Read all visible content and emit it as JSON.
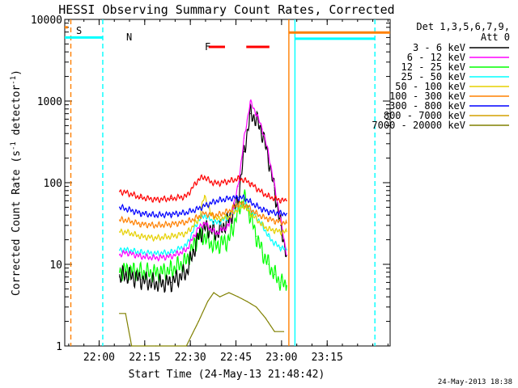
{
  "chart_data": {
    "type": "line",
    "title": "HESSI Observing Summary Count Rates, Corrected",
    "xlabel": "Start Time (24-May-13 21:48:42)",
    "ylabel": "Corrected Count Rate (s⁻¹ detector⁻¹)",
    "ylabel_main": "Corrected Count Rate (s",
    "ylabel_sup1": "-1",
    "ylabel_mid": " detector",
    "ylabel_sup2": "-1",
    "ylabel_end": ")",
    "yscale": "log",
    "ylim": [
      1,
      10000
    ],
    "xlim_minutes": [
      0,
      107
    ],
    "x_unit": "minutes after 21:48:42",
    "xticks": [
      {
        "label": "22:00",
        "value": 11.3
      },
      {
        "label": "22:15",
        "value": 26.3
      },
      {
        "label": "22:30",
        "value": 41.3
      },
      {
        "label": "22:45",
        "value": 56.3
      },
      {
        "label": "23:00",
        "value": 71.3
      },
      {
        "label": "23:15",
        "value": 86.3
      }
    ],
    "yticks": [
      {
        "label": "1",
        "value": 1
      },
      {
        "label": "10",
        "value": 10
      },
      {
        "label": "100",
        "value": 100
      },
      {
        "label": "1000",
        "value": 1000
      },
      {
        "label": "10000",
        "value": 10000
      }
    ],
    "legend_header": [
      "Det 1,3,5,6,7,9,",
      "Att 0"
    ],
    "legend_position": "right",
    "series": [
      {
        "name": "3 - 6 keV",
        "color": "#000000",
        "points": [
          [
            18,
            7
          ],
          [
            20,
            7.5
          ],
          [
            25,
            6.5
          ],
          [
            30,
            5.8
          ],
          [
            35,
            6
          ],
          [
            40,
            8
          ],
          [
            44,
            22
          ],
          [
            46,
            28
          ],
          [
            48,
            27
          ],
          [
            50,
            24
          ],
          [
            54,
            35
          ],
          [
            57,
            60
          ],
          [
            59,
            240
          ],
          [
            61,
            700
          ],
          [
            63,
            600
          ],
          [
            65,
            400
          ],
          [
            67,
            200
          ],
          [
            69,
            80
          ],
          [
            71,
            30
          ],
          [
            73,
            13
          ]
        ]
      },
      {
        "name": "6 - 12 keV",
        "color": "#ff00ff",
        "points": [
          [
            18,
            13
          ],
          [
            20,
            14
          ],
          [
            25,
            12.5
          ],
          [
            30,
            12
          ],
          [
            35,
            12.5
          ],
          [
            40,
            15
          ],
          [
            44,
            28
          ],
          [
            46,
            32
          ],
          [
            48,
            27
          ],
          [
            50,
            24
          ],
          [
            54,
            30
          ],
          [
            57,
            90
          ],
          [
            59,
            350
          ],
          [
            61,
            980
          ],
          [
            63,
            700
          ],
          [
            65,
            450
          ],
          [
            67,
            230
          ],
          [
            69,
            90
          ],
          [
            71,
            35
          ],
          [
            73,
            13
          ]
        ]
      },
      {
        "name": "12 - 25 keV",
        "color": "#00ff00",
        "points": [
          [
            18,
            8
          ],
          [
            20,
            8.5
          ],
          [
            25,
            8
          ],
          [
            30,
            7.8
          ],
          [
            35,
            8.5
          ],
          [
            40,
            11
          ],
          [
            44,
            22
          ],
          [
            46,
            22
          ],
          [
            48,
            18
          ],
          [
            50,
            17
          ],
          [
            54,
            20
          ],
          [
            57,
            45
          ],
          [
            59,
            65
          ],
          [
            61,
            40
          ],
          [
            63,
            22
          ],
          [
            65,
            14
          ],
          [
            67,
            10
          ],
          [
            69,
            7.5
          ],
          [
            71,
            6
          ],
          [
            73,
            5.5
          ]
        ]
      },
      {
        "name": "25 - 50 keV",
        "color": "#00ffff",
        "points": [
          [
            18,
            15
          ],
          [
            20,
            15
          ],
          [
            25,
            14
          ],
          [
            30,
            13.5
          ],
          [
            35,
            14
          ],
          [
            40,
            17
          ],
          [
            44,
            35
          ],
          [
            46,
            40
          ],
          [
            48,
            35
          ],
          [
            50,
            32
          ],
          [
            54,
            38
          ],
          [
            57,
            50
          ],
          [
            59,
            55
          ],
          [
            61,
            45
          ],
          [
            63,
            38
          ],
          [
            65,
            30
          ],
          [
            67,
            22
          ],
          [
            69,
            18
          ],
          [
            71,
            16
          ],
          [
            73,
            15
          ]
        ]
      },
      {
        "name": "50 - 100 keV",
        "color": "#e6d000",
        "points": [
          [
            18,
            25
          ],
          [
            20,
            25
          ],
          [
            25,
            22
          ],
          [
            30,
            21
          ],
          [
            35,
            22
          ],
          [
            40,
            24
          ],
          [
            44,
            35
          ],
          [
            46,
            70
          ],
          [
            48,
            42
          ],
          [
            50,
            36
          ],
          [
            54,
            38
          ],
          [
            57,
            48
          ],
          [
            59,
            52
          ],
          [
            61,
            42
          ],
          [
            63,
            36
          ],
          [
            65,
            30
          ],
          [
            67,
            27
          ],
          [
            69,
            26
          ],
          [
            71,
            25
          ],
          [
            73,
            25
          ]
        ]
      },
      {
        "name": "100 - 300 keV",
        "color": "#ff8000",
        "points": [
          [
            18,
            35
          ],
          [
            20,
            35
          ],
          [
            25,
            31
          ],
          [
            30,
            30
          ],
          [
            35,
            31
          ],
          [
            40,
            33
          ],
          [
            44,
            38
          ],
          [
            46,
            42
          ],
          [
            48,
            40
          ],
          [
            50,
            40
          ],
          [
            54,
            45
          ],
          [
            57,
            55
          ],
          [
            59,
            55
          ],
          [
            61,
            48
          ],
          [
            63,
            42
          ],
          [
            65,
            38
          ],
          [
            67,
            36
          ],
          [
            69,
            34
          ],
          [
            71,
            33
          ],
          [
            73,
            32
          ]
        ]
      },
      {
        "name": "300 - 800 keV",
        "color": "#0000ff",
        "points": [
          [
            18,
            50
          ],
          [
            20,
            48
          ],
          [
            25,
            42
          ],
          [
            30,
            40
          ],
          [
            35,
            41
          ],
          [
            40,
            43
          ],
          [
            44,
            48
          ],
          [
            46,
            52
          ],
          [
            48,
            56
          ],
          [
            50,
            60
          ],
          [
            54,
            64
          ],
          [
            57,
            66
          ],
          [
            59,
            65
          ],
          [
            61,
            58
          ],
          [
            63,
            52
          ],
          [
            65,
            47
          ],
          [
            67,
            44
          ],
          [
            69,
            43
          ],
          [
            71,
            42
          ],
          [
            73,
            42
          ]
        ]
      },
      {
        "name": "800 - 7000 keV",
        "color": "#d4a000",
        "points": []
      },
      {
        "name": "7000 - 20000 keV",
        "color": "#808000",
        "points": [
          [
            18,
            2.5
          ],
          [
            20,
            2.5
          ],
          [
            22,
            1
          ],
          [
            30,
            1
          ],
          [
            40,
            1
          ],
          [
            44,
            2
          ],
          [
            47,
            3.5
          ],
          [
            49,
            4.5
          ],
          [
            51,
            4
          ],
          [
            54,
            4.5
          ],
          [
            57,
            4
          ],
          [
            60,
            3.5
          ],
          [
            63,
            3
          ],
          [
            66,
            2.2
          ],
          [
            69,
            1.5
          ],
          [
            72,
            1.5
          ]
        ]
      },
      {
        "name": "",
        "color": "#ff0000",
        "points": [
          [
            18,
            78
          ],
          [
            20,
            76
          ],
          [
            25,
            66
          ],
          [
            30,
            62
          ],
          [
            35,
            64
          ],
          [
            40,
            68
          ],
          [
            44,
            110
          ],
          [
            46,
            118
          ],
          [
            48,
            102
          ],
          [
            50,
            98
          ],
          [
            54,
            104
          ],
          [
            57,
            112
          ],
          [
            59,
            108
          ],
          [
            61,
            98
          ],
          [
            63,
            86
          ],
          [
            65,
            75
          ],
          [
            67,
            68
          ],
          [
            69,
            64
          ],
          [
            71,
            61
          ],
          [
            73,
            60
          ]
        ]
      }
    ],
    "annotations": {
      "S": {
        "label": "S",
        "color": "#ff8000"
      },
      "N": {
        "label": "N",
        "color": "#00ffff"
      },
      "F": {
        "label": "F",
        "color": "#ff0000"
      }
    },
    "markers": [
      {
        "kind": "cyan_bar_left",
        "color": "#00ffff",
        "x0": 0,
        "x1": 12.5,
        "y": 6000
      },
      {
        "kind": "orange_bar_left",
        "color": "#ff8000",
        "x0": 0,
        "x1": 1.0,
        "y": 8000
      },
      {
        "kind": "red_flare_bar",
        "color": "#ff0000",
        "segments": [
          [
            47.3,
            52.7
          ],
          [
            59.7,
            67.3
          ]
        ],
        "y": 4600
      },
      {
        "kind": "orange_bar_right",
        "color": "#ff8000",
        "x0": 73.7,
        "x1": 107,
        "y": 6900
      },
      {
        "kind": "cyan_bar_right",
        "color": "#00ffff",
        "x0": 75.7,
        "x1": 102,
        "y": 5800
      }
    ],
    "vlines": [
      {
        "x": 2.0,
        "color": "#ff8000",
        "dash": true
      },
      {
        "x": 12.5,
        "color": "#00ffff",
        "dash": true
      },
      {
        "x": 73.7,
        "color": "#ff8000",
        "dash": false
      },
      {
        "x": 75.7,
        "color": "#00ffff",
        "dash": false
      },
      {
        "x": 102.0,
        "color": "#00ffff",
        "dash": true
      }
    ]
  },
  "footer_date": "24-May-2013 18:38"
}
